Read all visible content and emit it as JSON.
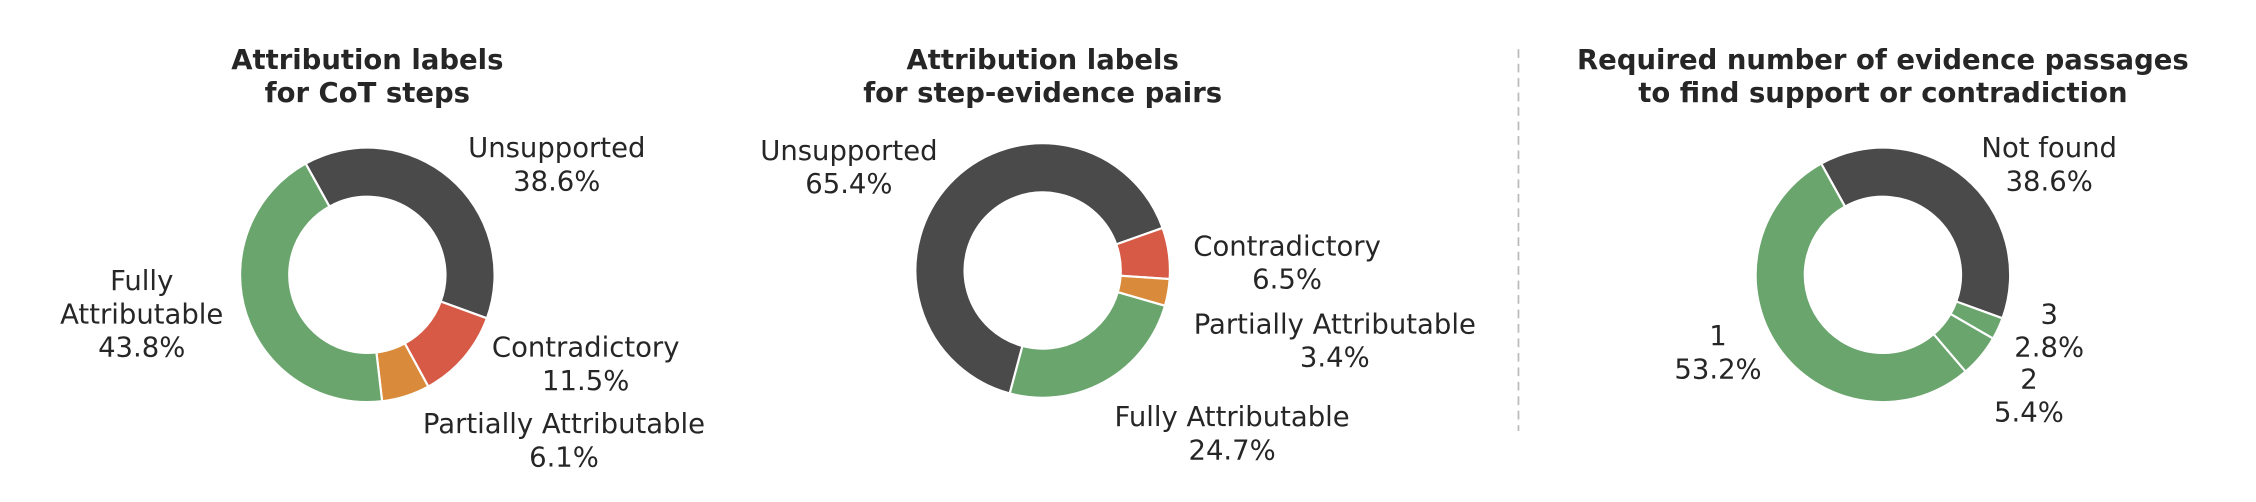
{
  "chart_data": [
    {
      "type": "donut",
      "title": "Attribution labels\nfor CoT steps",
      "categories": [
        "Unsupported",
        "Contradictory",
        "Partially Attributable",
        "Fully Attributable"
      ],
      "values": [
        38.6,
        11.5,
        6.1,
        43.8
      ],
      "value_labels": [
        "38.6%",
        "11.5%",
        "6.1%",
        "43.8%"
      ],
      "colors": [
        "#4a4a4a",
        "#d65a45",
        "#d98a3a",
        "#6aa56d"
      ],
      "start_angle": -29
    },
    {
      "type": "donut",
      "title": "Attribution labels\nfor step-evidence pairs",
      "categories": [
        "Unsupported",
        "Contradictory",
        "Partially Attributable",
        "Fully Attributable"
      ],
      "values": [
        65.4,
        6.5,
        3.4,
        24.7
      ],
      "value_labels": [
        "65.4%",
        "6.5%",
        "3.4%",
        "24.7%"
      ],
      "colors": [
        "#4a4a4a",
        "#d65a45",
        "#d98a3a",
        "#6aa56d"
      ],
      "start_angle": 195
    },
    {
      "type": "donut",
      "title": "Required number of evidence passages\nto find support or contradiction",
      "categories": [
        "Not found",
        "3",
        "2",
        "1"
      ],
      "values": [
        38.6,
        2.8,
        5.4,
        53.2
      ],
      "value_labels": [
        "38.6%",
        "2.8%",
        "5.4%",
        "53.2%"
      ],
      "colors": [
        "#4a4a4a",
        "#6aa56d",
        "#6aa56d",
        "#6aa56d"
      ],
      "start_angle": -29
    }
  ]
}
